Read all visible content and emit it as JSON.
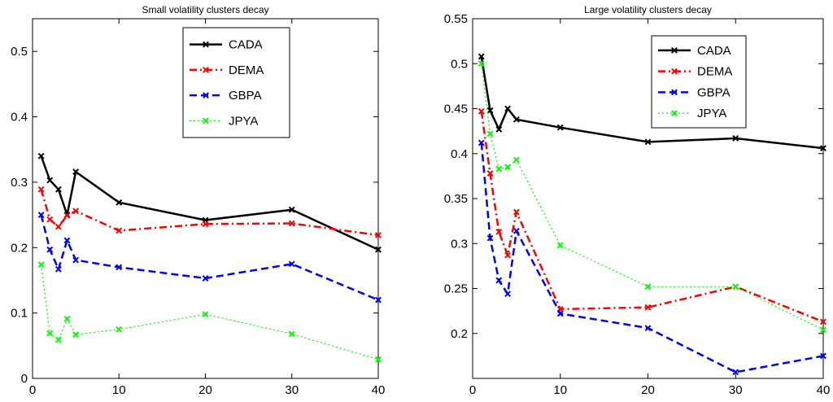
{
  "chart_data": [
    {
      "type": "line",
      "title": "Small volatility clusters decay",
      "xlabel": "",
      "ylabel": "",
      "xlim": [
        0,
        40
      ],
      "ylim": [
        0,
        0.55
      ],
      "xticks": [
        0,
        10,
        20,
        30,
        40
      ],
      "yticks": [
        0,
        0.1,
        0.2,
        0.3,
        0.4,
        0.5
      ],
      "ytick_labels": [
        "0",
        "0.1",
        "0.2",
        "0.3",
        "0.4",
        "0.5"
      ],
      "x": [
        1,
        2,
        3,
        4,
        5,
        10,
        20,
        30,
        40
      ],
      "grid": false,
      "legend_position": "top-right",
      "series": [
        {
          "name": "CADA",
          "color": "#000000",
          "style": "solid",
          "values": [
            0.34,
            0.303,
            0.289,
            0.25,
            0.316,
            0.269,
            0.242,
            0.258,
            0.197
          ]
        },
        {
          "name": "DEMA",
          "color": "#ff0000",
          "style": "dashdot",
          "values": [
            0.289,
            0.243,
            0.232,
            0.249,
            0.256,
            0.226,
            0.236,
            0.237,
            0.219
          ]
        },
        {
          "name": "GBPA",
          "color": "#0000ff",
          "style": "dashed",
          "values": [
            0.25,
            0.197,
            0.167,
            0.211,
            0.181,
            0.17,
            0.153,
            0.175,
            0.12
          ]
        },
        {
          "name": "JPYA",
          "color": "#00ff00",
          "style": "dotted",
          "values": [
            0.174,
            0.069,
            0.059,
            0.091,
            0.067,
            0.075,
            0.098,
            0.068,
            0.029
          ]
        }
      ]
    },
    {
      "type": "line",
      "title": "Large volatility clusters decay",
      "xlabel": "",
      "ylabel": "",
      "xlim": [
        0,
        40
      ],
      "ylim": [
        0.15,
        0.55
      ],
      "xticks": [
        0,
        10,
        20,
        30,
        40
      ],
      "yticks": [
        0.2,
        0.25,
        0.3,
        0.35,
        0.4,
        0.45,
        0.5,
        0.55
      ],
      "ytick_labels": [
        "0.2",
        "0.25",
        "0.3",
        "0.35",
        "0.4",
        "0.45",
        "0.5",
        "0.55"
      ],
      "x": [
        1,
        2,
        3,
        4,
        5,
        10,
        20,
        30,
        40
      ],
      "grid": false,
      "legend_position": "top-right",
      "series": [
        {
          "name": "CADA",
          "color": "#000000",
          "style": "solid",
          "values": [
            0.508,
            0.448,
            0.427,
            0.45,
            0.438,
            0.429,
            0.413,
            0.417,
            0.406
          ]
        },
        {
          "name": "DEMA",
          "color": "#ff0000",
          "style": "dashdot",
          "values": [
            0.447,
            0.378,
            0.313,
            0.287,
            0.335,
            0.227,
            0.229,
            0.252,
            0.213
          ]
        },
        {
          "name": "GBPA",
          "color": "#0000ff",
          "style": "dashed",
          "values": [
            0.412,
            0.306,
            0.259,
            0.244,
            0.314,
            0.222,
            0.206,
            0.157,
            0.175
          ]
        },
        {
          "name": "JPYA",
          "color": "#00ff00",
          "style": "dotted",
          "values": [
            0.5,
            0.422,
            0.383,
            0.385,
            0.393,
            0.298,
            0.252,
            0.252,
            0.204
          ]
        }
      ]
    }
  ]
}
